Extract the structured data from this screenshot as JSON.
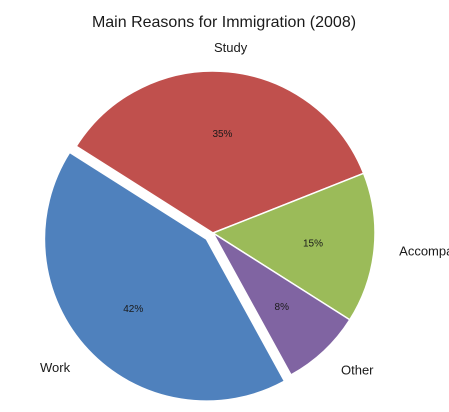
{
  "chart_data": {
    "type": "pie",
    "title": "Main Reasons for Immigration (2008)",
    "categories": [
      "Work",
      "Study",
      "Accompany/Join",
      "Other"
    ],
    "values": [
      42,
      35,
      15,
      8
    ],
    "value_labels": [
      "42%",
      "35%",
      "15%",
      "8%"
    ],
    "colors": [
      "#4f81bd",
      "#c0504d",
      "#9bbb59",
      "#8064a2"
    ],
    "exploded": [
      "Work"
    ],
    "legend": "none"
  }
}
